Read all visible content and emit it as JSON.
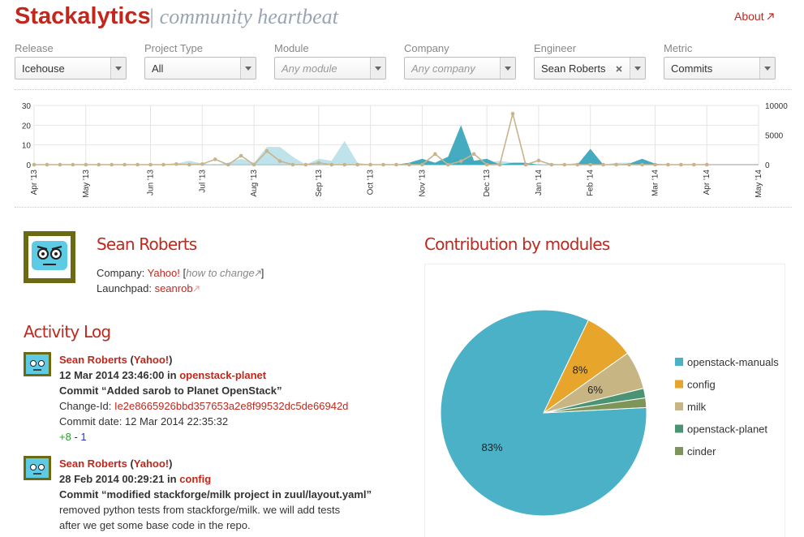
{
  "header": {
    "brand": "Stackalytics",
    "tagline": "| community heartbeat",
    "about": "About"
  },
  "filters": [
    {
      "label": "Release",
      "value": "Icehouse"
    },
    {
      "label": "Project Type",
      "value": "All"
    },
    {
      "label": "Module",
      "value": "Any module"
    },
    {
      "label": "Company",
      "value": "Any company"
    },
    {
      "label": "Engineer",
      "value": "Sean Roberts"
    },
    {
      "label": "Metric",
      "value": "Commits"
    }
  ],
  "profile": {
    "name": "Sean Roberts",
    "company_label": "Company:",
    "company": "Yahoo!",
    "how_to_open": "[",
    "how_to": "how to change",
    "how_to_close": "]",
    "launchpad_label": "Launchpad:",
    "launchpad": "seanrob"
  },
  "activity": {
    "title": "Activity Log",
    "entries": [
      {
        "author": "Sean Roberts",
        "company_open": "(",
        "company": "Yahoo!",
        "company_close": ")",
        "date": "12 Mar 2014 23:46:00",
        "in": "in",
        "repo": "openstack-planet",
        "subject": "Commit “Added sarob to Planet OpenStack”",
        "change_id_label": "Change-Id:",
        "change_id": "Ie2e8665926bbd357653a2e8f99532dc5de66942d",
        "commit_date": "Commit date: 12 Mar 2014 22:35:32",
        "added": "+8",
        "separator": "-",
        "removed": "1"
      },
      {
        "author": "Sean Roberts",
        "company_open": "(",
        "company": "Yahoo!",
        "company_close": ")",
        "date": "28 Feb 2014 00:29:21",
        "in": "in",
        "repo": "config",
        "subject": "Commit “modified stackforge/milk project in zuul/layout.yaml”",
        "body": [
          "removed python tests from stackforge/milk. we will add tests",
          "after we get some base code in the repo."
        ]
      }
    ]
  },
  "chart_data": [
    {
      "type": "area-line",
      "categories": [
        "Apr '13",
        null,
        null,
        null,
        "May '13",
        null,
        null,
        null,
        null,
        "Jun '13",
        null,
        null,
        null,
        "Jul '13",
        null,
        null,
        null,
        "Aug '13",
        null,
        null,
        null,
        null,
        "Sep '13",
        null,
        null,
        null,
        "Oct '13",
        null,
        null,
        null,
        "Nov '13",
        null,
        null,
        null,
        null,
        "Dec '13",
        null,
        null,
        null,
        "Jan '14",
        null,
        null,
        null,
        "Feb '14",
        null,
        null,
        null,
        null,
        "Mar '14",
        null,
        null,
        null,
        "Apr '14",
        null,
        null,
        null,
        "May '14"
      ],
      "ylim": [
        0,
        30
      ],
      "yticks": [
        0,
        10,
        20,
        30
      ],
      "y2lim": [
        0,
        10000
      ],
      "y2ticks": [
        0,
        5000,
        10000
      ],
      "grid": true,
      "series": [
        {
          "color": "#a9d9e3",
          "kind": "area",
          "values": [
            0,
            0,
            0,
            0,
            0,
            0,
            0,
            0,
            0,
            0,
            0,
            0.5,
            2,
            0.5,
            0,
            1,
            3,
            1,
            9,
            9,
            4,
            0,
            3,
            2,
            12,
            1,
            0,
            0,
            0,
            1,
            2,
            1,
            4,
            3,
            2,
            1,
            2,
            1,
            1,
            0,
            0.5,
            0,
            1,
            0.5,
            0,
            1,
            1,
            0.5,
            0,
            0,
            0,
            0,
            0,
            0,
            0,
            0,
            0
          ]
        },
        {
          "color": "#3aa6bd",
          "kind": "area",
          "values": [
            0,
            0,
            0,
            0,
            0,
            0,
            0,
            0,
            0,
            0,
            0,
            0,
            0,
            0,
            0,
            0,
            0,
            0,
            0,
            0,
            0,
            0,
            0,
            0,
            0,
            0,
            0,
            0,
            0,
            1,
            3,
            1,
            4,
            20,
            2,
            3,
            0,
            1,
            1,
            0,
            0,
            0,
            0,
            8,
            0,
            0,
            0.5,
            3,
            0.5,
            0,
            0,
            0,
            0,
            0,
            0,
            0,
            0
          ]
        },
        {
          "color": "#c8b38a",
          "kind": "line",
          "axis": "y2",
          "values": [
            0,
            0,
            0,
            0,
            0,
            0,
            0,
            0,
            0,
            0,
            0,
            100,
            0,
            100,
            900,
            0,
            1500,
            0,
            2300,
            600,
            0,
            0,
            300,
            0,
            0,
            0,
            0,
            0,
            0,
            0,
            0,
            1800,
            0,
            600,
            1800,
            0,
            0,
            8600,
            0,
            700,
            0,
            0,
            0,
            0,
            0,
            0,
            0,
            0,
            0,
            0,
            0,
            0,
            0,
            null,
            null,
            null,
            null
          ]
        }
      ]
    },
    {
      "type": "pie",
      "title": "Contribution by modules",
      "categories": [
        "openstack-manuals",
        "config",
        "milk",
        "openstack-planet",
        "cinder"
      ],
      "values": [
        83,
        8,
        6,
        1.5,
        1.5
      ],
      "value_labels": [
        "83%",
        "8%",
        "6%",
        null,
        null
      ],
      "colors": [
        "#4ab1c7",
        "#e8a52b",
        "#c7b584",
        "#4b9473",
        "#7e9559"
      ]
    }
  ]
}
